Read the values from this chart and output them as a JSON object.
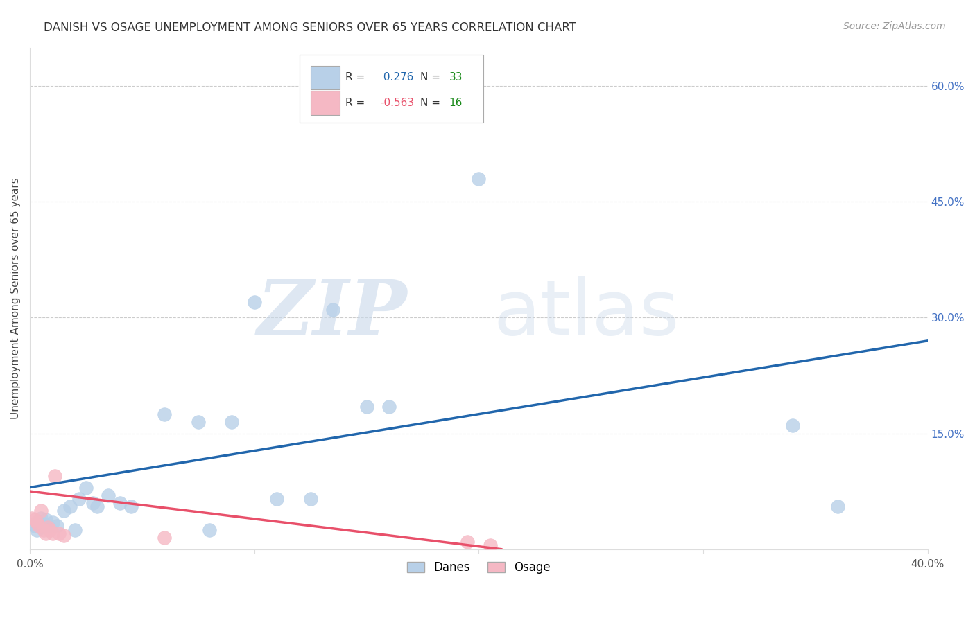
{
  "title": "DANISH VS OSAGE UNEMPLOYMENT AMONG SENIORS OVER 65 YEARS CORRELATION CHART",
  "source": "Source: ZipAtlas.com",
  "ylabel": "Unemployment Among Seniors over 65 years",
  "xlim": [
    0.0,
    0.4
  ],
  "ylim": [
    0.0,
    0.65
  ],
  "danes_R": 0.276,
  "danes_N": 33,
  "osage_R": -0.563,
  "osage_N": 16,
  "danes_color": "#b8d0e8",
  "osage_color": "#f5b8c4",
  "danes_line_color": "#2166ac",
  "osage_line_color": "#e8506a",
  "danes_x": [
    0.002,
    0.003,
    0.004,
    0.005,
    0.005,
    0.006,
    0.007,
    0.008,
    0.01,
    0.012,
    0.015,
    0.018,
    0.02,
    0.022,
    0.025,
    0.028,
    0.03,
    0.035,
    0.04,
    0.045,
    0.06,
    0.075,
    0.08,
    0.09,
    0.1,
    0.11,
    0.125,
    0.135,
    0.15,
    0.16,
    0.2,
    0.34,
    0.36
  ],
  "danes_y": [
    0.03,
    0.025,
    0.035,
    0.028,
    0.04,
    0.032,
    0.038,
    0.03,
    0.035,
    0.03,
    0.05,
    0.055,
    0.025,
    0.065,
    0.08,
    0.06,
    0.055,
    0.07,
    0.06,
    0.055,
    0.175,
    0.165,
    0.025,
    0.165,
    0.32,
    0.065,
    0.065,
    0.31,
    0.185,
    0.185,
    0.48,
    0.16,
    0.055
  ],
  "osage_x": [
    0.001,
    0.002,
    0.003,
    0.004,
    0.005,
    0.006,
    0.007,
    0.008,
    0.009,
    0.01,
    0.011,
    0.013,
    0.015,
    0.06,
    0.195,
    0.205
  ],
  "osage_y": [
    0.04,
    0.038,
    0.035,
    0.03,
    0.05,
    0.025,
    0.02,
    0.028,
    0.025,
    0.02,
    0.095,
    0.02,
    0.018,
    0.015,
    0.01,
    0.005
  ],
  "danes_line_x0": 0.0,
  "danes_line_y0": 0.08,
  "danes_line_x1": 0.4,
  "danes_line_y1": 0.27,
  "osage_line_x0": 0.0,
  "osage_line_y0": 0.075,
  "osage_line_x1": 0.21,
  "osage_line_y1": 0.0,
  "background_color": "#ffffff",
  "grid_color": "#cccccc",
  "title_fontsize": 12,
  "axis_fontsize": 11,
  "source_fontsize": 10
}
